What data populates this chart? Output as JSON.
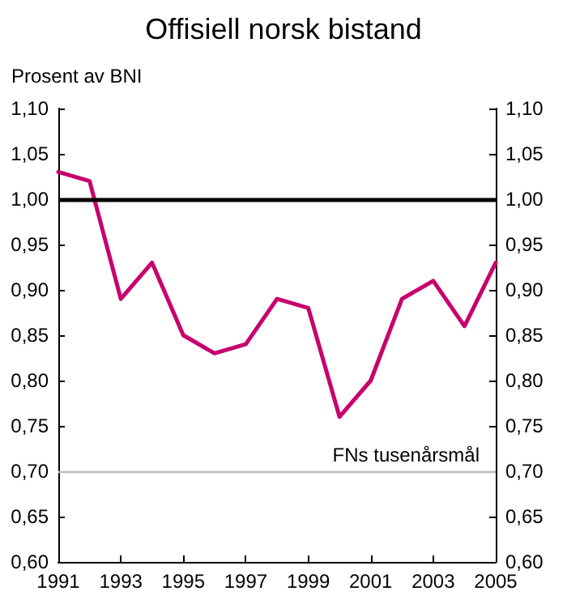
{
  "chart_data": {
    "type": "line",
    "title": "Offisiell norsk bistand",
    "ylabel": "Prosent av BNI",
    "x": [
      1991,
      1992,
      1993,
      1994,
      1995,
      1996,
      1997,
      1998,
      1999,
      2000,
      2001,
      2002,
      2003,
      2004,
      2005
    ],
    "series": [
      {
        "color": "#c8006e",
        "values": [
          1.03,
          1.02,
          0.89,
          0.93,
          0.85,
          0.83,
          0.84,
          0.89,
          0.88,
          0.76,
          0.8,
          0.89,
          0.91,
          0.86,
          0.93
        ]
      }
    ],
    "xlim": [
      1991,
      2005
    ],
    "xticks": [
      1991,
      1993,
      1995,
      1997,
      1999,
      2001,
      2003,
      2005
    ],
    "ylim": [
      0.6,
      1.1
    ],
    "yticks": [
      {
        "value": 0.6,
        "label": "0,60"
      },
      {
        "value": 0.65,
        "label": "0,65"
      },
      {
        "value": 0.7,
        "label": "0,70"
      },
      {
        "value": 0.75,
        "label": "0,75"
      },
      {
        "value": 0.8,
        "label": "0,80"
      },
      {
        "value": 0.85,
        "label": "0,85"
      },
      {
        "value": 0.9,
        "label": "0,90"
      },
      {
        "value": 0.95,
        "label": "0,95"
      },
      {
        "value": 1.0,
        "label": "1,00"
      },
      {
        "value": 1.05,
        "label": "1,05"
      },
      {
        "value": 1.1,
        "label": "1,10"
      }
    ],
    "y2lim": [
      0.6,
      1.1
    ],
    "y2ticks": [
      {
        "value": 0.6,
        "label": "0,60"
      },
      {
        "value": 0.65,
        "label": "0,65"
      },
      {
        "value": 0.7,
        "label": "0,70"
      },
      {
        "value": 0.75,
        "label": "0,75"
      },
      {
        "value": 0.8,
        "label": "0,80"
      },
      {
        "value": 0.85,
        "label": "0,85"
      },
      {
        "value": 0.9,
        "label": "0,90"
      },
      {
        "value": 0.95,
        "label": "0,95"
      },
      {
        "value": 1.0,
        "label": "1,00"
      },
      {
        "value": 1.05,
        "label": "1,05"
      },
      {
        "value": 1.1,
        "label": "1,10"
      }
    ],
    "ref_lines": [
      {
        "axis": "y",
        "value": 1.0,
        "label": null,
        "color": "#000000"
      },
      {
        "axis": "y",
        "value": 0.7,
        "label": "FNs tusenårsmål",
        "color": "#bbbbbb"
      }
    ],
    "grid": false,
    "marker": "none",
    "line_style": "solid"
  }
}
